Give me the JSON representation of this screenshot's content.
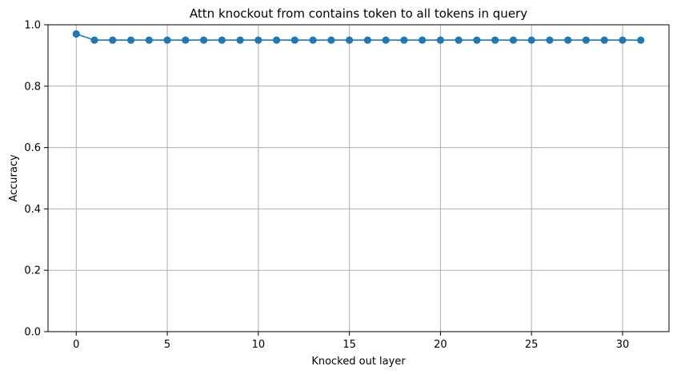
{
  "chart_data": {
    "type": "line",
    "title": "Attn knockout from contains token to all tokens in query",
    "xlabel": "Knocked out layer",
    "ylabel": "Accuracy",
    "xlim": [
      -1.55,
      32.55
    ],
    "ylim": [
      0.0,
      1.0
    ],
    "xticks": [
      0,
      5,
      10,
      15,
      20,
      25,
      30
    ],
    "yticks": [
      0.0,
      0.2,
      0.4,
      0.6,
      0.8,
      1.0
    ],
    "xtick_labels": [
      "0",
      "5",
      "10",
      "15",
      "20",
      "25",
      "30"
    ],
    "ytick_labels": [
      "0.0",
      "0.2",
      "0.4",
      "0.6",
      "0.8",
      "1.0"
    ],
    "grid": true,
    "series": [
      {
        "color": "#1f77b4",
        "marker": "circle",
        "x": [
          0,
          1,
          2,
          3,
          4,
          5,
          6,
          7,
          8,
          9,
          10,
          11,
          12,
          13,
          14,
          15,
          16,
          17,
          18,
          19,
          20,
          21,
          22,
          23,
          24,
          25,
          26,
          27,
          28,
          29,
          30,
          31
        ],
        "values": [
          0.97,
          0.95,
          0.95,
          0.95,
          0.95,
          0.95,
          0.95,
          0.95,
          0.95,
          0.95,
          0.95,
          0.95,
          0.95,
          0.95,
          0.95,
          0.95,
          0.95,
          0.95,
          0.95,
          0.95,
          0.95,
          0.95,
          0.95,
          0.95,
          0.95,
          0.95,
          0.95,
          0.95,
          0.95,
          0.95,
          0.95,
          0.95
        ]
      }
    ]
  }
}
